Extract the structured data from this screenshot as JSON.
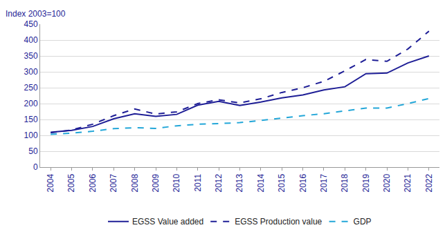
{
  "chart_data": {
    "type": "line",
    "ylabel": "Index 2003=100",
    "categories": [
      "2004",
      "2005",
      "2006",
      "2007",
      "2008",
      "2009",
      "2010",
      "2011",
      "2012",
      "2013",
      "2014",
      "2015",
      "2016",
      "2017",
      "2018",
      "2019",
      "2020",
      "2021",
      "2022"
    ],
    "series": [
      {
        "name": "EGSS Value added",
        "color": "#1e1e96",
        "line_style": "solid",
        "values": [
          110,
          116,
          128,
          152,
          168,
          160,
          166,
          195,
          207,
          194,
          205,
          218,
          227,
          243,
          253,
          294,
          296,
          328,
          350
        ]
      },
      {
        "name": "EGSS Production value",
        "color": "#1e1e96",
        "line_style": "dash",
        "values": [
          108,
          117,
          135,
          162,
          183,
          167,
          174,
          200,
          212,
          202,
          215,
          235,
          250,
          270,
          303,
          339,
          333,
          372,
          428
        ]
      },
      {
        "name": "GDP",
        "color": "#22a6d8",
        "line_style": "dash",
        "values": [
          103,
          107,
          113,
          121,
          124,
          122,
          130,
          135,
          137,
          140,
          147,
          155,
          162,
          168,
          177,
          186,
          186,
          200,
          216
        ]
      }
    ],
    "ylim": [
      0,
      450
    ],
    "yticks": [
      0,
      50,
      100,
      150,
      200,
      250,
      300,
      350,
      400,
      450
    ],
    "grid": true,
    "legend": "bottom"
  }
}
